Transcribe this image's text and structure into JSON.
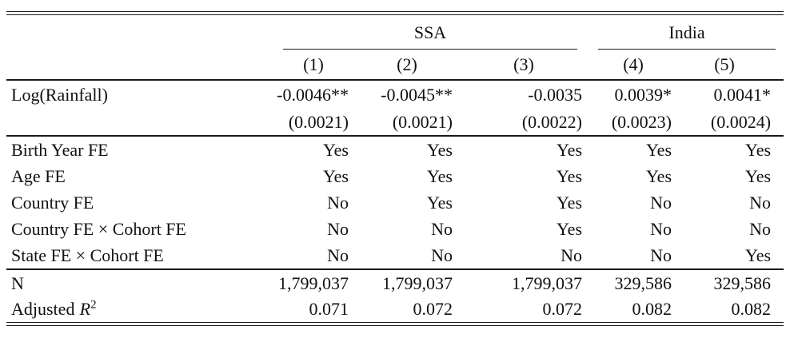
{
  "table": {
    "column_groups": [
      {
        "label": "SSA"
      },
      {
        "label": "India"
      }
    ],
    "column_headers": [
      "(1)",
      "(2)",
      "(3)",
      "(4)",
      "(5)"
    ],
    "coefficient_row": {
      "label": "Log(Rainfall)",
      "estimates": [
        "-0.0046**",
        "-0.0045**",
        "-0.0035",
        "0.0039*",
        "0.0041*"
      ],
      "std_errors": [
        "(0.0021)",
        "(0.0021)",
        "(0.0022)",
        "(0.0023)",
        "(0.0024)"
      ]
    },
    "fixed_effects_rows": [
      {
        "label": "Birth Year FE",
        "values": [
          "Yes",
          "Yes",
          "Yes",
          "Yes",
          "Yes"
        ]
      },
      {
        "label": "Age FE",
        "values": [
          "Yes",
          "Yes",
          "Yes",
          "Yes",
          "Yes"
        ]
      },
      {
        "label": "Country FE",
        "values": [
          "No",
          "Yes",
          "Yes",
          "No",
          "No"
        ]
      },
      {
        "label": "Country FE × Cohort FE",
        "values": [
          "No",
          "No",
          "Yes",
          "No",
          "No"
        ]
      },
      {
        "label": "State FE × Cohort FE",
        "values": [
          "No",
          "No",
          "No",
          "No",
          "Yes"
        ]
      }
    ],
    "stats_rows": [
      {
        "label": "N",
        "values": [
          "1,799,037",
          "1,799,037",
          "1,799,037",
          "329,586",
          "329,586"
        ]
      },
      {
        "label_prefix": "Adjusted",
        "label_symbol": "R",
        "label_superscript": "2",
        "values": [
          "0.071",
          "0.072",
          "0.072",
          "0.082",
          "0.082"
        ]
      }
    ],
    "rule_color": "#1a1a1a"
  }
}
